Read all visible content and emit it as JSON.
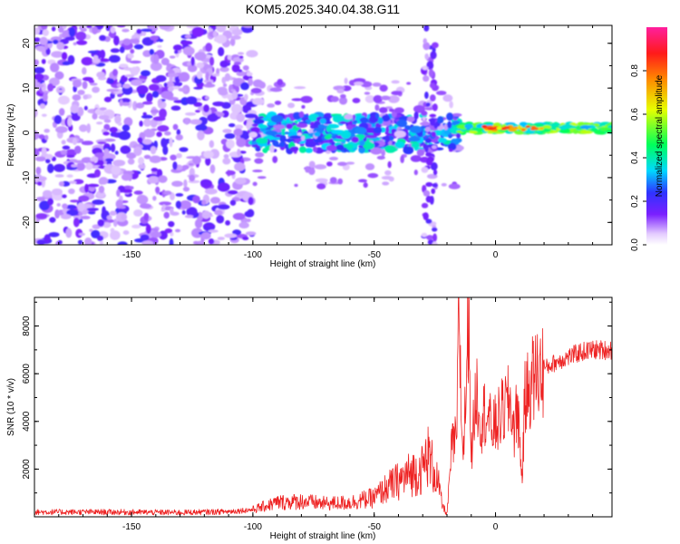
{
  "title": "KOM5.2025.340.04.38.G11",
  "colors": {
    "snr_line": "#ee2222",
    "spectrogram_base": "#7a1fff"
  },
  "chart_data": [
    {
      "type": "heatmap",
      "title": "KOM5.2025.340.04.38.G11",
      "xlabel": "Height of straight line (km)",
      "ylabel": "Frequency (Hz)",
      "xlim": [
        -190,
        48
      ],
      "ylim": [
        -25,
        24
      ],
      "xticks": [
        -150,
        -100,
        -50,
        0
      ],
      "yticks": [
        -20,
        -10,
        0,
        10,
        20
      ],
      "colorbar": {
        "label": "Normalized spectral amplitude",
        "range": [
          0.0,
          1.0
        ],
        "ticks": [
          0.0,
          0.2,
          0.4,
          0.6,
          0.8
        ]
      },
      "features": [
        {
          "name": "scattered noise",
          "x_range": [
            -190,
            -100
          ],
          "freq_range": [
            -25,
            24
          ],
          "amplitude": 0.2
        },
        {
          "name": "band",
          "x_range": [
            -100,
            -15
          ],
          "freq_center": 0,
          "freq_halfwidth": 4,
          "amplitude": 0.3
        },
        {
          "name": "vertical streak",
          "x": -27,
          "freq_range": [
            -25,
            24
          ],
          "amplitude": 0.15
        },
        {
          "name": "narrow tone",
          "x_range": [
            -15,
            48
          ],
          "freq_center": 1,
          "freq_halfwidth": 1,
          "amplitude": 0.6
        },
        {
          "name": "peak",
          "x_range": [
            -5,
            20
          ],
          "freq_center": 1,
          "amplitude": 0.95
        }
      ]
    },
    {
      "type": "line",
      "xlabel": "Height of straight line (km)",
      "ylabel": "SNR (10 * v/v)",
      "xlim": [
        -190,
        48
      ],
      "ylim": [
        0,
        9200
      ],
      "xticks": [
        -150,
        -100,
        -50,
        0
      ],
      "yticks": [
        2000,
        4000,
        6000,
        8000
      ],
      "series": [
        {
          "name": "SNR",
          "x": [
            -190,
            -160,
            -130,
            -110,
            -100,
            -90,
            -80,
            -70,
            -60,
            -55,
            -50,
            -45,
            -40,
            -35,
            -30,
            -28,
            -24,
            -22,
            -20,
            -19,
            -18,
            -16,
            -15,
            -14,
            -13,
            -12,
            -11,
            -10,
            -9,
            -8,
            -6,
            -4,
            -2,
            0,
            2,
            4,
            6,
            8,
            9,
            10,
            11,
            12,
            14,
            16,
            20,
            25,
            30,
            35,
            40,
            45,
            48
          ],
          "values": [
            200,
            200,
            180,
            220,
            300,
            600,
            650,
            550,
            600,
            700,
            800,
            1200,
            1500,
            1800,
            2000,
            2600,
            1600,
            500,
            100,
            1500,
            3000,
            3200,
            9200,
            3500,
            3000,
            6000,
            9000,
            2500,
            3800,
            5500,
            4000,
            4500,
            3800,
            3800,
            4200,
            4600,
            4800,
            3500,
            5000,
            3000,
            1600,
            4800,
            5500,
            5900,
            6200,
            6500,
            6700,
            6900,
            7000,
            7000,
            7000
          ]
        }
      ]
    }
  ]
}
